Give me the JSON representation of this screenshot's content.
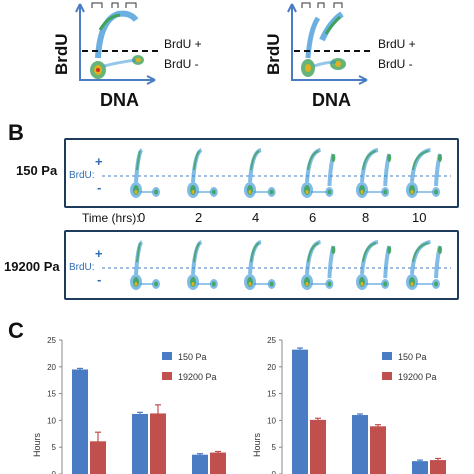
{
  "panelA": {
    "y_axis": "BrdU",
    "x_axis": "DNA",
    "gate_plus": "BrdU +",
    "gate_minus": "BrdU -"
  },
  "panelB": {
    "letter": "B",
    "rows": [
      {
        "label": "150 Pa",
        "brdu": "BrdU:",
        "plus": "+",
        "minus": "-"
      },
      {
        "label": "19200 Pa",
        "brdu": "BrdU:",
        "plus": "+",
        "minus": "-"
      }
    ],
    "time_label": "Time (hrs):",
    "times": [
      "0",
      "2",
      "4",
      "6",
      "8",
      "10"
    ]
  },
  "panelC": {
    "letter": "C",
    "colors": {
      "s150": "#4a7cc4",
      "s19200": "#c0504d"
    },
    "chart_data": [
      {
        "type": "bar",
        "ylabel": "Hours",
        "ylim": [
          0,
          25
        ],
        "yticks": [
          "0",
          "5",
          "10",
          "15",
          "20",
          "25"
        ],
        "legend_position": "top-right",
        "series": [
          {
            "name": "150 Pa",
            "values": [
              19.5,
              11.2,
              3.6
            ],
            "errors": [
              0.2,
              0.3,
              0.2
            ]
          },
          {
            "name": "19200 Pa",
            "values": [
              6.1,
              11.3,
              4.0
            ],
            "errors": [
              1.7,
              1.6,
              0.2
            ]
          }
        ]
      },
      {
        "type": "bar",
        "ylabel": "Hours",
        "ylim": [
          0,
          25
        ],
        "yticks": [
          "0",
          "5",
          "10",
          "15",
          "20",
          "25"
        ],
        "legend_position": "top-right",
        "series": [
          {
            "name": "150 Pa",
            "values": [
              23.2,
              11.0,
              2.4
            ],
            "errors": [
              0.3,
              0.2,
              0.2
            ]
          },
          {
            "name": "19200 Pa",
            "values": [
              10.1,
              8.9,
              2.6
            ],
            "errors": [
              0.3,
              0.3,
              0.3
            ]
          }
        ]
      }
    ]
  }
}
